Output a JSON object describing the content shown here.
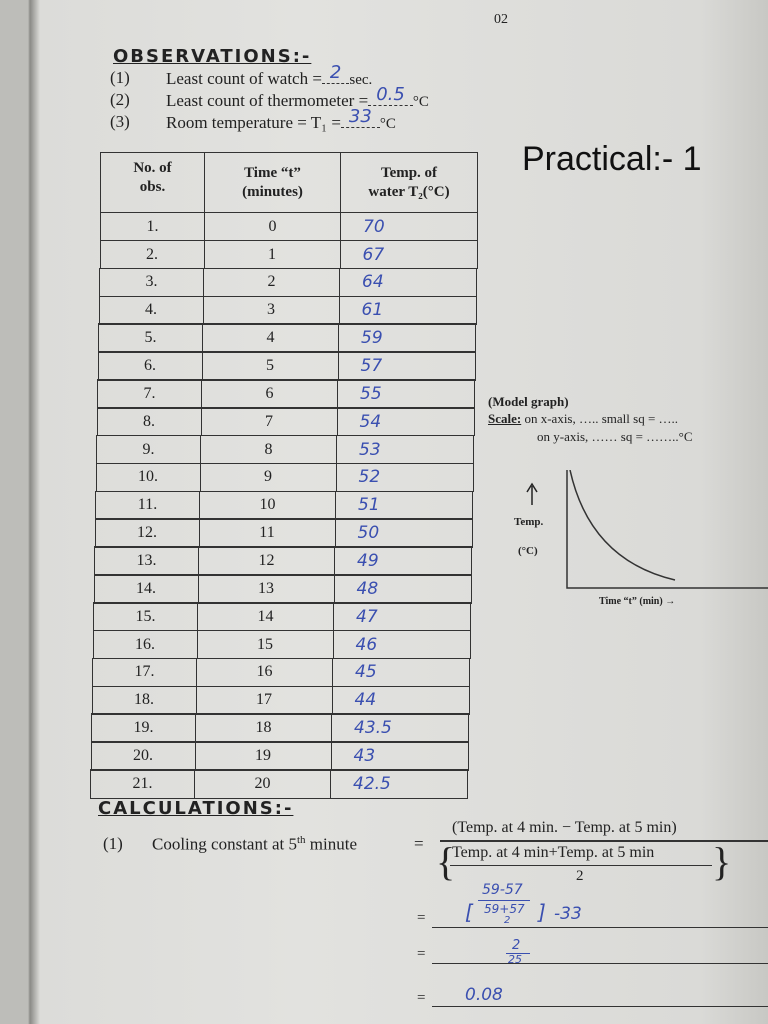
{
  "page_number": "02",
  "observations": {
    "heading": "OBSERVATIONS:-",
    "items": [
      {
        "number": "(1)",
        "label": "Least count of watch =",
        "value": "2",
        "unit": "sec."
      },
      {
        "number": "(2)",
        "label": "Least count of thermometer =",
        "value": "0.5",
        "unit": "°C"
      },
      {
        "number": "(3)",
        "label": "Room temperature = T₁ =",
        "value": "33",
        "unit": "°C"
      }
    ]
  },
  "practical": "Practical:- 1",
  "table": {
    "headers": [
      "No. of\nobs.",
      "Time “t”\n(minutes)",
      "Temp. of\nwater T₂(°C)"
    ],
    "rows": [
      [
        "1.",
        "0",
        "70"
      ],
      [
        "2.",
        "1",
        "67"
      ],
      [
        "3.",
        "2",
        "64"
      ],
      [
        "4.",
        "3",
        "61"
      ],
      [
        "5.",
        "4",
        "59"
      ],
      [
        "6.",
        "5",
        "57"
      ],
      [
        "7.",
        "6",
        "55"
      ],
      [
        "8.",
        "7",
        "54"
      ],
      [
        "9.",
        "8",
        "53"
      ],
      [
        "10.",
        "9",
        "52"
      ],
      [
        "11.",
        "10",
        "51"
      ],
      [
        "12.",
        "11",
        "50"
      ],
      [
        "13.",
        "12",
        "49"
      ],
      [
        "14.",
        "13",
        "48"
      ],
      [
        "15.",
        "14",
        "47"
      ],
      [
        "16.",
        "15",
        "46"
      ],
      [
        "17.",
        "16",
        "45"
      ],
      [
        "18.",
        "17",
        "44"
      ],
      [
        "19.",
        "18",
        "43.5"
      ],
      [
        "20.",
        "19",
        "43"
      ],
      [
        "21.",
        "20",
        "42.5"
      ]
    ]
  },
  "model_graph": {
    "title": "(Model graph)",
    "scale_label": "Scale:",
    "scale_x": "on x-axis, ….. small sq = …..",
    "scale_y": "on y-axis, …… sq = ……..°C",
    "y_label": "Temp.",
    "y_unit": "(°C)",
    "x_label": "Time “t” (min) →"
  },
  "calculations": {
    "heading": "CALCULATIONS:-",
    "item_number": "(1)",
    "label": "Cooling constant at 5",
    "label_sup": "th",
    "label_end": " minute",
    "numerator": "(Temp. at 4 min. − Temp. at 5 min)",
    "denominator_top": "Temp. at 4 min+Temp. at 5 min",
    "denominator_bottom": "2",
    "steps": {
      "step1_numerator": "59-57",
      "step1_denominator_top": "59+57",
      "step1_denominator_bottom": "2",
      "step1_minus": "-33",
      "step2_numerator": "2",
      "step2_denominator": "25",
      "result": "0.08"
    }
  }
}
